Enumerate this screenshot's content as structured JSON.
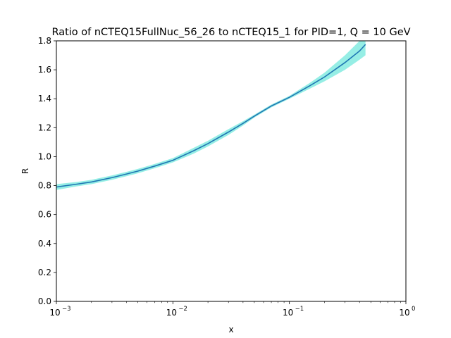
{
  "chart_data": {
    "type": "line",
    "title": "Ratio of nCTEQ15FullNuc_56_26 to nCTEQ15_1 for PID=1, Q = 10 GeV",
    "xlabel": "x",
    "ylabel": "R",
    "xscale": "log",
    "xlim": [
      0.001,
      1
    ],
    "ylim": [
      0.0,
      1.8
    ],
    "grid": false,
    "x_ticks": [
      {
        "base": "10",
        "exp": "−3",
        "value": 0.001
      },
      {
        "base": "10",
        "exp": "−2",
        "value": 0.01
      },
      {
        "base": "10",
        "exp": "−1",
        "value": 0.1
      },
      {
        "base": "10",
        "exp": "0",
        "value": 1
      }
    ],
    "y_ticks": [
      "0.0",
      "0.2",
      "0.4",
      "0.6",
      "0.8",
      "1.0",
      "1.2",
      "1.4",
      "1.6",
      "1.8"
    ],
    "colors": {
      "line": "#1f77b4",
      "band": "#40e0d0"
    },
    "series": [
      {
        "x": [
          0.001,
          0.0015,
          0.002,
          0.003,
          0.004,
          0.005,
          0.007,
          0.01,
          0.015,
          0.02,
          0.03,
          0.04,
          0.05,
          0.07,
          0.1,
          0.15,
          0.2,
          0.3,
          0.4,
          0.45
        ],
        "values": [
          0.79,
          0.81,
          0.825,
          0.855,
          0.88,
          0.9,
          0.935,
          0.975,
          1.04,
          1.09,
          1.17,
          1.23,
          1.28,
          1.35,
          1.41,
          1.49,
          1.55,
          1.65,
          1.73,
          1.775
        ],
        "lower": [
          0.77,
          0.795,
          0.81,
          0.84,
          0.865,
          0.885,
          0.92,
          0.96,
          1.02,
          1.07,
          1.15,
          1.215,
          1.27,
          1.34,
          1.4,
          1.47,
          1.52,
          1.6,
          1.67,
          1.7
        ],
        "upper": [
          0.81,
          0.825,
          0.84,
          0.87,
          0.895,
          0.915,
          0.95,
          0.99,
          1.06,
          1.11,
          1.19,
          1.245,
          1.29,
          1.36,
          1.42,
          1.51,
          1.58,
          1.7,
          1.8,
          1.85
        ]
      }
    ]
  }
}
